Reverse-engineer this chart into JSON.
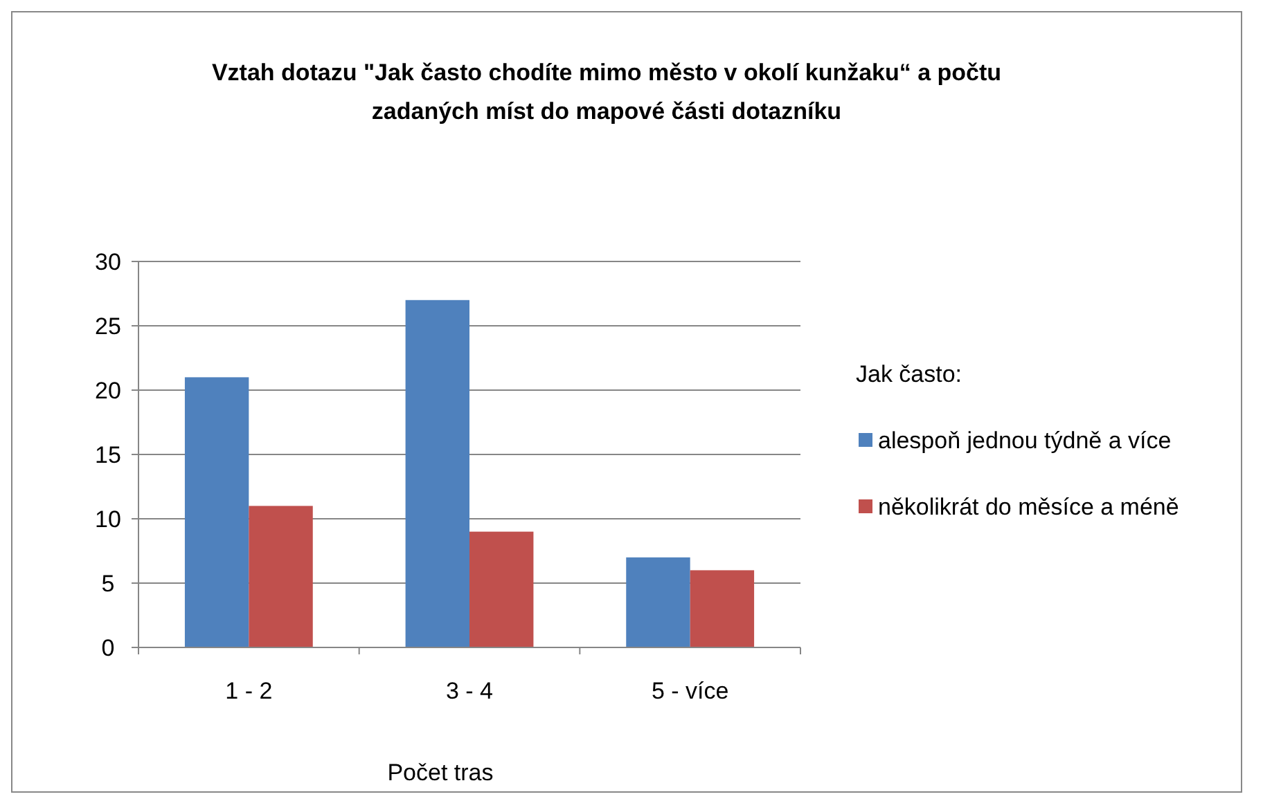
{
  "chart_data": {
    "type": "bar",
    "title": "Vztah dotazu \"Jak často chodíte mimo město v okolí kunžaku“ a počtu zadaných míst do mapové části dotazníku",
    "xlabel": "Počet tras",
    "legend_title": "Jak často:",
    "categories": [
      "1 - 2",
      "3 - 4",
      "5 - více"
    ],
    "series": [
      {
        "name": "alespoň jednou týdně a více",
        "color": "#4f81bd",
        "values": [
          21,
          27,
          7
        ]
      },
      {
        "name": "několikrát do měsíce a méně",
        "color": "#c0504d",
        "values": [
          11,
          9,
          6
        ]
      }
    ],
    "ylim": [
      0,
      30
    ],
    "yticks": [
      0,
      5,
      10,
      15,
      20,
      25,
      30
    ],
    "grid": "y",
    "legend": "right"
  }
}
